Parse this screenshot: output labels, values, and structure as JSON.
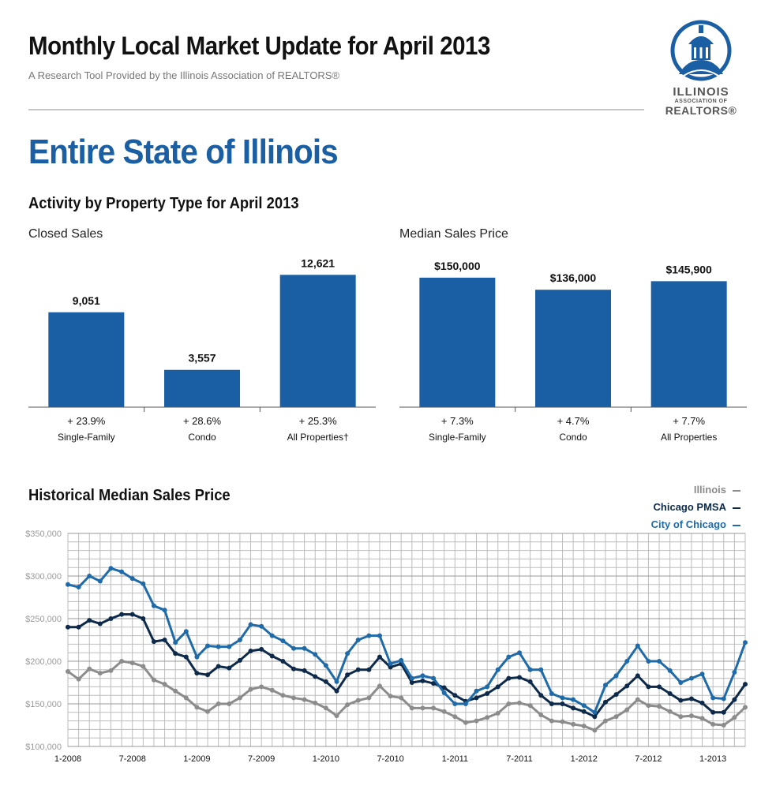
{
  "header": {
    "title": "Monthly Local Market Update for April 2013",
    "subtitle": "A Research Tool Provided by the Illinois Association of REALTORS®"
  },
  "logo": {
    "line1": "ILLINOIS",
    "line2": "ASSOCIATION OF",
    "line3": "REALTORS®",
    "icon": "capitol-dome-icon"
  },
  "region_title": "Entire State of Illinois",
  "section_title": "Activity by Property Type for April 2013",
  "colors": {
    "bar": "#1a5ea4",
    "illinois": "#8c8c8c",
    "chicago_pmsa": "#0d2a4a",
    "city_of_chicago": "#1f6aa8",
    "grid": "#bdbdbd"
  },
  "chart_data": [
    {
      "type": "bar",
      "title": "Closed Sales",
      "categories": [
        "Single-Family",
        "Condo",
        "All Properties†"
      ],
      "values": [
        9051,
        3557,
        12621
      ],
      "value_labels": [
        "9,051",
        "3,557",
        "12,621"
      ],
      "change_labels": [
        "+ 23.9%",
        "+ 28.6%",
        "+ 25.3%"
      ],
      "ylim": [
        0,
        14000
      ]
    },
    {
      "type": "bar",
      "title": "Median Sales Price",
      "categories": [
        "Single-Family",
        "Condo",
        "All Properties"
      ],
      "values": [
        150000,
        136000,
        145900
      ],
      "value_labels": [
        "$150,000",
        "$136,000",
        "$145,900"
      ],
      "change_labels": [
        "+ 7.3%",
        "+ 4.7%",
        "+ 7.7%"
      ],
      "ylim": [
        0,
        170000
      ]
    },
    {
      "type": "line",
      "title": "Historical Median Sales Price",
      "x_start": "1-2008",
      "x_tick_labels": [
        "1-2008",
        "7-2008",
        "1-2009",
        "7-2009",
        "1-2010",
        "7-2010",
        "1-2011",
        "7-2011",
        "1-2012",
        "7-2012",
        "1-2013"
      ],
      "y_tick_labels": [
        "$350,000",
        "$300,000",
        "$250,000",
        "$200,000",
        "$150,000",
        "$100,000"
      ],
      "ylim": [
        100000,
        350000
      ],
      "grid": true,
      "legend_position": "top-right",
      "series": [
        {
          "name": "Illinois",
          "color_key": "illinois",
          "values": [
            188000,
            179000,
            191000,
            186000,
            189000,
            200000,
            198000,
            194000,
            178000,
            173000,
            165000,
            157000,
            146000,
            141000,
            150000,
            150000,
            157000,
            167000,
            170000,
            166000,
            160000,
            157000,
            155000,
            151000,
            145000,
            136000,
            149000,
            154000,
            157000,
            171000,
            159000,
            157000,
            145000,
            145000,
            145000,
            141000,
            135000,
            128000,
            130000,
            134000,
            139000,
            150000,
            151000,
            148000,
            137000,
            130000,
            129000,
            126000,
            124000,
            119000,
            130000,
            135000,
            143000,
            155000,
            148000,
            147000,
            141000,
            135000,
            136000,
            133000,
            126000,
            125000,
            134000,
            146000
          ]
        },
        {
          "name": "Chicago PMSA",
          "color_key": "chicago_pmsa",
          "values": [
            240000,
            240000,
            248000,
            244000,
            250000,
            255000,
            255000,
            250000,
            223000,
            225000,
            209000,
            205000,
            186000,
            184000,
            194000,
            192000,
            201000,
            212000,
            214000,
            206000,
            200000,
            191000,
            189000,
            182000,
            176000,
            165000,
            184000,
            190000,
            190000,
            205000,
            193000,
            197000,
            175000,
            177000,
            174000,
            169000,
            160000,
            153000,
            157000,
            162000,
            170000,
            180000,
            181000,
            176000,
            160000,
            150000,
            150000,
            145000,
            141000,
            135000,
            152000,
            161000,
            171000,
            183000,
            170000,
            170000,
            162000,
            154000,
            156000,
            151000,
            140000,
            140000,
            155000,
            173000
          ]
        },
        {
          "name": "City of Chicago",
          "color_key": "city_of_chicago",
          "values": [
            290000,
            287000,
            300000,
            294000,
            309000,
            305000,
            297000,
            291000,
            265000,
            260000,
            222000,
            235000,
            205000,
            218000,
            217000,
            217000,
            225000,
            243000,
            241000,
            230000,
            224000,
            215000,
            215000,
            208000,
            195000,
            176000,
            209000,
            225000,
            230000,
            230000,
            197000,
            201000,
            180000,
            183000,
            180000,
            163000,
            150000,
            150000,
            165000,
            170000,
            190000,
            205000,
            210000,
            190000,
            190000,
            162000,
            157000,
            155000,
            148000,
            140000,
            172000,
            183000,
            200000,
            218000,
            200000,
            200000,
            189000,
            175000,
            180000,
            185000,
            157000,
            156000,
            187000,
            222000
          ]
        }
      ]
    }
  ]
}
